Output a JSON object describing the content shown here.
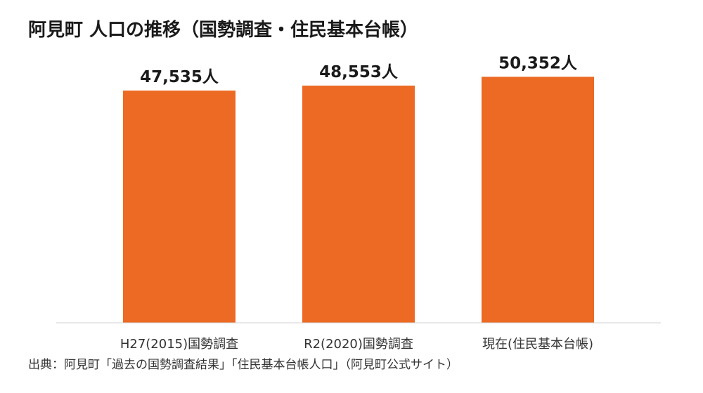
{
  "chart_data": {
    "type": "bar",
    "title": "阿見町 人口の推移（国勢調査・住民基本台帳）",
    "categories": [
      "H27(2015)国勢調査",
      "R2(2020)国勢調査",
      "現在(住民基本台帳)"
    ],
    "values": [
      47535,
      48553,
      50352
    ],
    "data_labels": [
      "47,535人",
      "48,553人",
      "50,352人"
    ],
    "xlabel": "",
    "ylabel": "",
    "ylim": [
      0,
      52000
    ],
    "grid": false,
    "legend": "none",
    "bar_color": "#EC6A24"
  },
  "source": "出典：阿見町「過去の国勢調査結果」「住民基本台帳人口」（阿見町公式サイト）"
}
